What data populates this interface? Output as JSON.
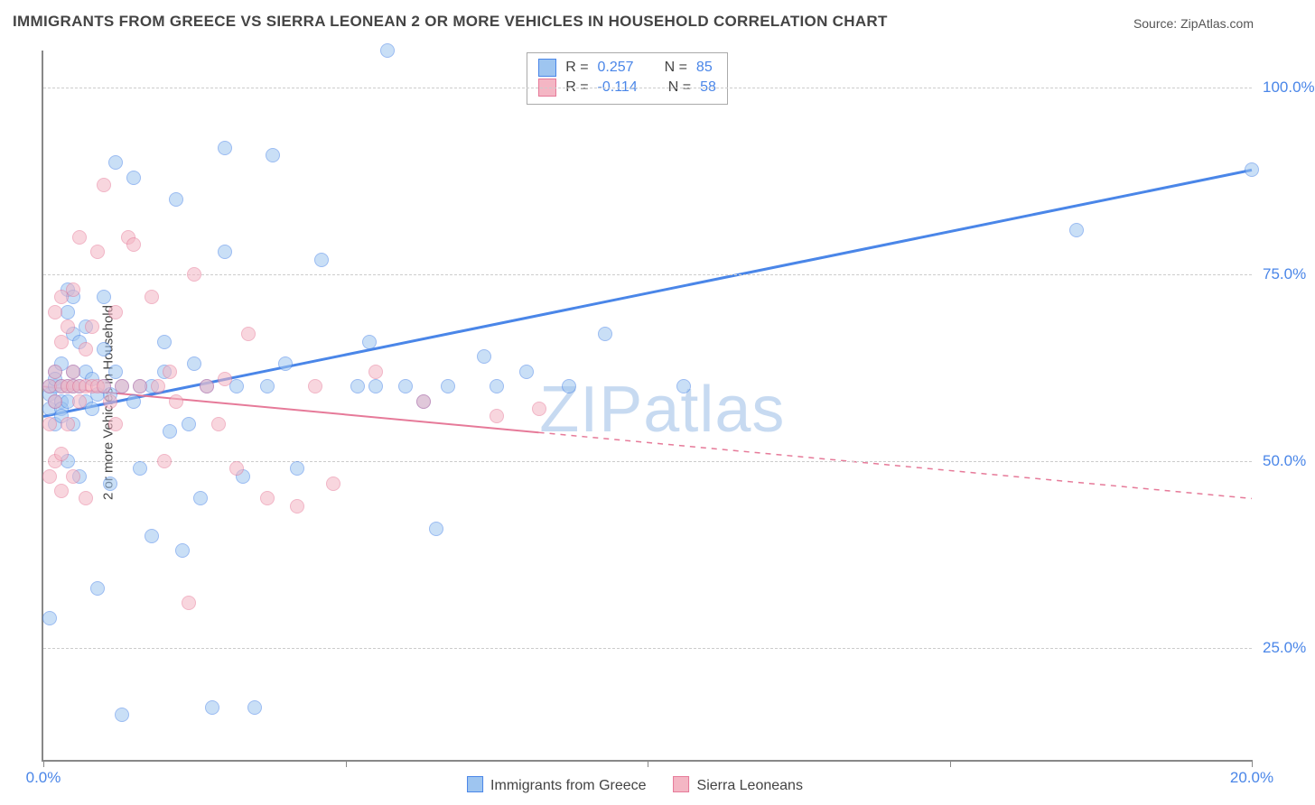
{
  "title": "IMMIGRANTS FROM GREECE VS SIERRA LEONEAN 2 OR MORE VEHICLES IN HOUSEHOLD CORRELATION CHART",
  "source": "Source: ZipAtlas.com",
  "yaxis_label": "2 or more Vehicles in Household",
  "watermark": {
    "part1": "ZIP",
    "part2": "atlas"
  },
  "chart": {
    "type": "scatter",
    "xlim": [
      0,
      20
    ],
    "ylim": [
      10,
      105
    ],
    "xticks": [
      0,
      5,
      10,
      15,
      20
    ],
    "xtick_labels": [
      "0.0%",
      "",
      "",
      "",
      "20.0%"
    ],
    "yticks": [
      25,
      50,
      75,
      100
    ],
    "ytick_labels": [
      "25.0%",
      "50.0%",
      "75.0%",
      "100.0%"
    ],
    "grid_color": "#cccccc",
    "axis_color": "#888888",
    "background_color": "#ffffff"
  },
  "series": [
    {
      "key": "greece",
      "label": "Immigrants from Greece",
      "color_fill": "#9ec5f0",
      "color_stroke": "#4a86e8",
      "marker_size": 16,
      "R": "0.257",
      "N": "85",
      "trend": {
        "x1": 0,
        "y1": 56,
        "x2": 20,
        "y2": 89,
        "width": 3,
        "dash_after_x": null
      },
      "points": [
        [
          0.1,
          59
        ],
        [
          0.1,
          60
        ],
        [
          0.1,
          57
        ],
        [
          0.1,
          29
        ],
        [
          0.2,
          62
        ],
        [
          0.2,
          55
        ],
        [
          0.2,
          58
        ],
        [
          0.2,
          60
        ],
        [
          0.2,
          61
        ],
        [
          0.3,
          60
        ],
        [
          0.3,
          58
        ],
        [
          0.3,
          57
        ],
        [
          0.3,
          56
        ],
        [
          0.3,
          63
        ],
        [
          0.4,
          60
        ],
        [
          0.4,
          58
        ],
        [
          0.4,
          73
        ],
        [
          0.4,
          50
        ],
        [
          0.4,
          70
        ],
        [
          0.5,
          60
        ],
        [
          0.5,
          55
        ],
        [
          0.5,
          62
        ],
        [
          0.5,
          67
        ],
        [
          0.5,
          72
        ],
        [
          0.6,
          48
        ],
        [
          0.6,
          60
        ],
        [
          0.6,
          66
        ],
        [
          0.7,
          62
        ],
        [
          0.7,
          58
        ],
        [
          0.7,
          68
        ],
        [
          0.8,
          61
        ],
        [
          0.8,
          57
        ],
        [
          0.9,
          59
        ],
        [
          0.9,
          33
        ],
        [
          1.0,
          60
        ],
        [
          1.0,
          65
        ],
        [
          1.0,
          72
        ],
        [
          1.1,
          59
        ],
        [
          1.1,
          47
        ],
        [
          1.2,
          62
        ],
        [
          1.2,
          90
        ],
        [
          1.3,
          60
        ],
        [
          1.3,
          16
        ],
        [
          1.5,
          58
        ],
        [
          1.5,
          88
        ],
        [
          1.6,
          60
        ],
        [
          1.6,
          49
        ],
        [
          1.8,
          60
        ],
        [
          1.8,
          40
        ],
        [
          2.0,
          62
        ],
        [
          2.0,
          66
        ],
        [
          2.1,
          54
        ],
        [
          2.2,
          85
        ],
        [
          2.3,
          38
        ],
        [
          2.4,
          55
        ],
        [
          2.5,
          63
        ],
        [
          2.6,
          45
        ],
        [
          2.7,
          60
        ],
        [
          2.8,
          17
        ],
        [
          3.0,
          92
        ],
        [
          3.0,
          78
        ],
        [
          3.2,
          60
        ],
        [
          3.3,
          48
        ],
        [
          3.5,
          17
        ],
        [
          3.7,
          60
        ],
        [
          3.8,
          91
        ],
        [
          4.0,
          63
        ],
        [
          4.2,
          49
        ],
        [
          4.6,
          77
        ],
        [
          5.2,
          60
        ],
        [
          5.4,
          66
        ],
        [
          5.5,
          60
        ],
        [
          5.7,
          105
        ],
        [
          6.0,
          60
        ],
        [
          6.3,
          58
        ],
        [
          6.5,
          41
        ],
        [
          6.7,
          60
        ],
        [
          7.3,
          64
        ],
        [
          7.5,
          60
        ],
        [
          8.0,
          62
        ],
        [
          8.7,
          60
        ],
        [
          9.3,
          67
        ],
        [
          10.6,
          60
        ],
        [
          17.1,
          81
        ],
        [
          20.0,
          89
        ]
      ]
    },
    {
      "key": "sierra",
      "label": "Sierra Leoneans",
      "color_fill": "#f4b6c4",
      "color_stroke": "#e67a99",
      "marker_size": 16,
      "R": "-0.114",
      "N": "58",
      "trend": {
        "x1": 0,
        "y1": 60,
        "x2": 20,
        "y2": 45,
        "width": 2,
        "dash_after_x": 8.2
      },
      "points": [
        [
          0.1,
          55
        ],
        [
          0.1,
          60
        ],
        [
          0.1,
          48
        ],
        [
          0.2,
          62
        ],
        [
          0.2,
          70
        ],
        [
          0.2,
          50
        ],
        [
          0.2,
          58
        ],
        [
          0.3,
          60
        ],
        [
          0.3,
          66
        ],
        [
          0.3,
          72
        ],
        [
          0.3,
          51
        ],
        [
          0.3,
          46
        ],
        [
          0.4,
          60
        ],
        [
          0.4,
          55
        ],
        [
          0.4,
          68
        ],
        [
          0.5,
          60
        ],
        [
          0.5,
          62
        ],
        [
          0.5,
          73
        ],
        [
          0.5,
          48
        ],
        [
          0.6,
          60
        ],
        [
          0.6,
          80
        ],
        [
          0.6,
          58
        ],
        [
          0.7,
          60
        ],
        [
          0.7,
          65
        ],
        [
          0.7,
          45
        ],
        [
          0.8,
          60
        ],
        [
          0.8,
          68
        ],
        [
          0.9,
          60
        ],
        [
          0.9,
          78
        ],
        [
          1.0,
          87
        ],
        [
          1.0,
          60
        ],
        [
          1.1,
          58
        ],
        [
          1.2,
          70
        ],
        [
          1.2,
          55
        ],
        [
          1.3,
          60
        ],
        [
          1.4,
          80
        ],
        [
          1.5,
          79
        ],
        [
          1.6,
          60
        ],
        [
          1.8,
          72
        ],
        [
          1.9,
          60
        ],
        [
          2.0,
          50
        ],
        [
          2.1,
          62
        ],
        [
          2.2,
          58
        ],
        [
          2.4,
          31
        ],
        [
          2.5,
          75
        ],
        [
          2.7,
          60
        ],
        [
          2.9,
          55
        ],
        [
          3.0,
          61
        ],
        [
          3.2,
          49
        ],
        [
          3.4,
          67
        ],
        [
          3.7,
          45
        ],
        [
          4.2,
          44
        ],
        [
          4.5,
          60
        ],
        [
          4.8,
          47
        ],
        [
          5.5,
          62
        ],
        [
          6.3,
          58
        ],
        [
          7.5,
          56
        ],
        [
          8.2,
          57
        ]
      ]
    }
  ],
  "legend_top": {
    "rows": [
      {
        "series": "greece",
        "r_label": "R =",
        "r_val": "0.257",
        "n_label": "N =",
        "n_val": "85"
      },
      {
        "series": "sierra",
        "r_label": "R =",
        "r_val": "-0.114",
        "n_label": "N =",
        "n_val": "58"
      }
    ]
  },
  "legend_bottom": [
    {
      "series": "greece",
      "label": "Immigrants from Greece"
    },
    {
      "series": "sierra",
      "label": "Sierra Leoneans"
    }
  ]
}
